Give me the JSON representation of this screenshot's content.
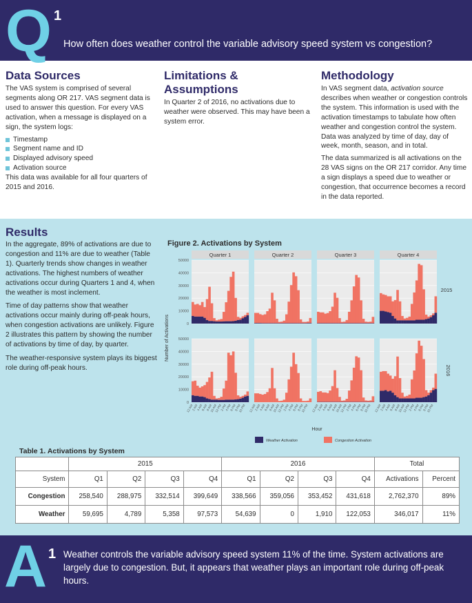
{
  "header": {
    "q_letter": "Q",
    "q_number": "1",
    "question": "How often does weather control the variable advisory speed system vs congestion?"
  },
  "data_sources": {
    "title": "Data Sources",
    "intro": "The VAS system is comprised of several segments along OR 217. VAS segment data is used to answer this question. For every VAS activation, when a message is displayed on a sign, the system logs:",
    "items": [
      "Timestamp",
      "Segment name and ID",
      "Displayed advisory speed",
      "Activation source"
    ],
    "outro": "This data was available for all four quarters of 2015 and 2016."
  },
  "limitations": {
    "title": "Limitations & Assumptions",
    "text": "In Quarter 2 of 2016, no activations due to weather were observed. This may have been a system error."
  },
  "methodology": {
    "title": "Methodology",
    "p1_pre": "In VAS segment data, ",
    "p1_em": "activation source",
    "p1_post": " describes when weather or congestion controls the system. This information is used with the activation timestamps to tabulate how often weather and congestion control the system. Data was analyzed by time of day, day of week, month, season, and in total.",
    "p2": "The data summarized is all activations on the 28 VAS signs on the OR 217 corridor. Any time a sign displays a speed due to weather or congestion, that occurrence becomes a record in the data reported."
  },
  "results": {
    "title": "Results",
    "p1": "In the aggregate, 89% of activations are due to congestion and 11% are due to weather (Table 1). Quarterly trends show changes in weather activations. The highest numbers of weather activations occur during Quarters 1 and 4, when the weather is most inclement.",
    "p2": "Time of day patterns show that weather activations occur mainly during off-peak hours, when congestion activations are unlikely.  Figure 2 illustrates this pattern by showing the number of activations by time of day, by quarter.",
    "p3": "The weather-responsive system plays its biggest role during off-peak hours."
  },
  "figure": {
    "title": "Figure 2. Activations by System"
  },
  "chart_data": {
    "type": "area",
    "title": "Figure 2. Activations by System",
    "xlabel": "Hour",
    "ylabel": "Number of Activations",
    "ylim": [
      0,
      50000
    ],
    "yticks": [
      "0",
      "10000",
      "20000",
      "30000",
      "40000",
      "50000"
    ],
    "xticks": [
      "12 AM",
      "2 AM",
      "4 AM",
      "6 AM",
      "8 AM",
      "10 AM",
      "12 PM",
      "2 PM",
      "4 PM",
      "6 PM",
      "8 PM",
      "10 PM"
    ],
    "facet_cols": [
      "Quarter 1",
      "Quarter 2",
      "Quarter 3",
      "Quarter 4"
    ],
    "facet_rows": [
      "2015",
      "2016"
    ],
    "legend": {
      "placement": "bottom",
      "weather": "Weather Activation",
      "congestion": "Congestion Activation"
    },
    "colors": {
      "weather": "#2f2a68",
      "congestion": "#f07363",
      "panel": "#ebebeb",
      "grid": "#ffffff"
    },
    "hours": [
      0,
      1,
      2,
      3,
      4,
      5,
      6,
      7,
      8,
      9,
      10,
      11,
      12,
      13,
      14,
      15,
      16,
      17,
      18,
      19,
      20,
      21,
      22,
      23
    ],
    "panels": [
      {
        "year": "2015",
        "quarter": "Quarter 1",
        "weather": [
          6000,
          5500,
          5500,
          5500,
          5500,
          4500,
          2800,
          2000,
          2000,
          1800,
          1600,
          1600,
          1600,
          1700,
          1800,
          1800,
          1800,
          1900,
          2200,
          2800,
          3000,
          4200,
          5200,
          6500
        ],
        "congestion": [
          11000,
          9500,
          10000,
          9000,
          11500,
          8500,
          16500,
          27000,
          14000,
          2500,
          1000,
          1500,
          2000,
          7500,
          15000,
          24000,
          35000,
          39000,
          18000,
          2500,
          1500,
          1500,
          1500,
          2000
        ]
      },
      {
        "year": "2015",
        "quarter": "Quarter 2",
        "weather": [
          400,
          400,
          400,
          300,
          300,
          300,
          300,
          300,
          300,
          300,
          300,
          300,
          300,
          300,
          300,
          300,
          300,
          300,
          300,
          300,
          300,
          300,
          400,
          400
        ],
        "congestion": [
          8000,
          8000,
          7000,
          6500,
          7000,
          9500,
          11500,
          24000,
          18000,
          3500,
          1000,
          1200,
          2000,
          7000,
          17000,
          30000,
          40000,
          37000,
          26000,
          3000,
          1000,
          1000,
          1200,
          4000
        ]
      },
      {
        "year": "2015",
        "quarter": "Quarter 3",
        "weather": [
          300,
          300,
          300,
          300,
          300,
          300,
          300,
          300,
          300,
          300,
          300,
          300,
          300,
          300,
          300,
          300,
          300,
          300,
          300,
          300,
          300,
          300,
          300,
          300
        ],
        "congestion": [
          9000,
          8500,
          8500,
          7500,
          8000,
          9500,
          13000,
          24000,
          20000,
          4000,
          1000,
          1200,
          2500,
          9000,
          18000,
          29000,
          38000,
          36000,
          18000,
          3500,
          1200,
          1000,
          1200,
          5000
        ]
      },
      {
        "year": "2015",
        "quarter": "Quarter 4",
        "weather": [
          10000,
          10000,
          9500,
          9000,
          8500,
          6000,
          4000,
          2500,
          2500,
          2500,
          2500,
          2500,
          2500,
          2500,
          2500,
          3000,
          3000,
          3000,
          3000,
          3500,
          4000,
          5000,
          6500,
          8500
        ],
        "congestion": [
          14000,
          13000,
          13000,
          12500,
          13000,
          11500,
          14500,
          24000,
          15000,
          3500,
          1500,
          2000,
          3000,
          13000,
          22000,
          31000,
          44000,
          43000,
          24000,
          3500,
          1500,
          1500,
          1500,
          13000
        ]
      },
      {
        "year": "2016",
        "quarter": "Quarter 1",
        "weather": [
          5500,
          5000,
          5000,
          4500,
          4500,
          4000,
          3000,
          2500,
          2000,
          2000,
          2000,
          1800,
          1800,
          1800,
          2000,
          2000,
          2000,
          2000,
          2200,
          2400,
          2800,
          3500,
          4500,
          5000
        ],
        "congestion": [
          11000,
          12000,
          8000,
          7000,
          8000,
          9500,
          13000,
          17000,
          22000,
          3000,
          1000,
          1500,
          2500,
          9000,
          15000,
          37000,
          35000,
          38000,
          21000,
          3000,
          1500,
          1500,
          1500,
          3500
        ]
      },
      {
        "year": "2016",
        "quarter": "Quarter 2",
        "weather": [
          0,
          0,
          0,
          0,
          0,
          0,
          0,
          0,
          0,
          0,
          0,
          0,
          0,
          0,
          0,
          0,
          0,
          0,
          0,
          0,
          0,
          0,
          0,
          0
        ],
        "congestion": [
          7000,
          7000,
          6500,
          6000,
          6500,
          8000,
          11000,
          27000,
          11000,
          3000,
          1000,
          1200,
          2000,
          7500,
          18000,
          28000,
          39000,
          30000,
          23000,
          3000,
          1000,
          1000,
          1200,
          3000
        ]
      },
      {
        "year": "2016",
        "quarter": "Quarter 3",
        "weather": [
          200,
          200,
          200,
          200,
          200,
          200,
          200,
          200,
          200,
          200,
          200,
          200,
          200,
          200,
          200,
          200,
          200,
          200,
          200,
          200,
          200,
          200,
          200,
          200
        ],
        "congestion": [
          8000,
          8500,
          7500,
          7500,
          7000,
          9000,
          12500,
          25000,
          11000,
          4000,
          1000,
          1200,
          2500,
          9000,
          17000,
          27000,
          36000,
          35000,
          25000,
          3500,
          1200,
          1000,
          1200,
          4500
        ]
      },
      {
        "year": "2016",
        "quarter": "Quarter 4",
        "weather": [
          9000,
          9000,
          9500,
          8500,
          9000,
          7500,
          5500,
          4000,
          3000,
          3000,
          3000,
          3000,
          3000,
          3000,
          3000,
          3500,
          3500,
          3500,
          4000,
          4500,
          5500,
          7500,
          9500,
          10500
        ],
        "congestion": [
          15000,
          15500,
          15000,
          14000,
          12000,
          11000,
          15000,
          32000,
          16000,
          4500,
          1500,
          2000,
          3000,
          15000,
          22000,
          35000,
          45000,
          41000,
          30000,
          5000,
          2000,
          2000,
          2000,
          12000
        ]
      }
    ]
  },
  "table": {
    "title": "Table 1. Activations by System",
    "year1": "2015",
    "year2": "2016",
    "total": "Total",
    "system_header": "System",
    "quarters": [
      "Q1",
      "Q2",
      "Q3",
      "Q4"
    ],
    "activations_header": "Activations",
    "percent_header": "Percent",
    "rows": [
      {
        "label": "Congestion",
        "values": [
          "258,540",
          "288,975",
          "332,514",
          "399,649",
          "338,566",
          "359,056",
          "353,452",
          "431,618"
        ],
        "activations": "2,762,370",
        "percent": "89%"
      },
      {
        "label": "Weather",
        "values": [
          "59,695",
          "4,789",
          "5,358",
          "97,573",
          "54,639",
          "0",
          "1,910",
          "122,053"
        ],
        "activations": "346,017",
        "percent": "11%"
      }
    ]
  },
  "answer": {
    "a_letter": "A",
    "a_number": "1",
    "text": "Weather controls the variable advisory speed system 11% of the time. System activations are largely due to congestion. But, it appears that weather plays an important role during off-peak hours."
  }
}
